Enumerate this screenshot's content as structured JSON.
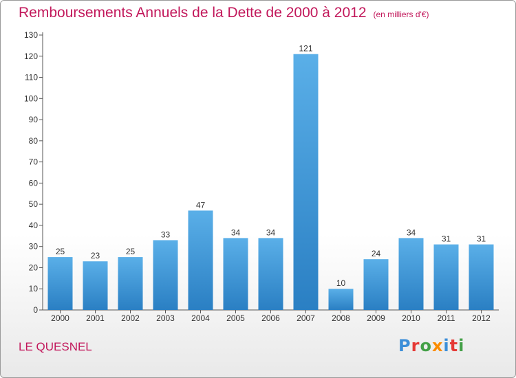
{
  "header": {
    "title": "Remboursements Annuels de la Dette de 2000 à 2012",
    "unit": "(en milliers d'€)"
  },
  "footer": {
    "place": "LE QUESNEL",
    "logo": "Proxiti"
  },
  "colors": {
    "title": "#c2185b",
    "bar_top": "#5aafe8",
    "bar_bottom": "#2a7fc3",
    "axis": "#555555"
  },
  "logo_letters": [
    {
      "char": "P",
      "color": "#3b8ed8"
    },
    {
      "char": "r",
      "color": "#e53935"
    },
    {
      "char": "o",
      "color": "#43a047"
    },
    {
      "char": "x",
      "color": "#fb8c00"
    },
    {
      "char": "i",
      "color": "#3b8ed8"
    },
    {
      "char": "t",
      "color": "#e53935"
    },
    {
      "char": "i",
      "color": "#43a047"
    }
  ],
  "chart_data": {
    "type": "bar",
    "title": "Remboursements Annuels de la Dette de 2000 à 2012",
    "subtitle": "(en milliers d'€)",
    "categories": [
      "2000",
      "2001",
      "2002",
      "2003",
      "2004",
      "2005",
      "2006",
      "2007",
      "2008",
      "2009",
      "2010",
      "2011",
      "2012"
    ],
    "values": [
      25,
      23,
      25,
      33,
      47,
      34,
      34,
      121,
      10,
      24,
      34,
      31,
      31
    ],
    "data_labels": [
      "25",
      "23",
      "25",
      "33",
      "47",
      "34",
      "34",
      "121",
      "10",
      "24",
      "34",
      "31",
      "31"
    ],
    "ylim": [
      0,
      130
    ],
    "yticks": [
      0,
      10,
      20,
      30,
      40,
      50,
      60,
      70,
      80,
      90,
      100,
      110,
      120,
      130
    ],
    "xlabel": "",
    "ylabel": "",
    "grid": false,
    "legend": "none"
  }
}
